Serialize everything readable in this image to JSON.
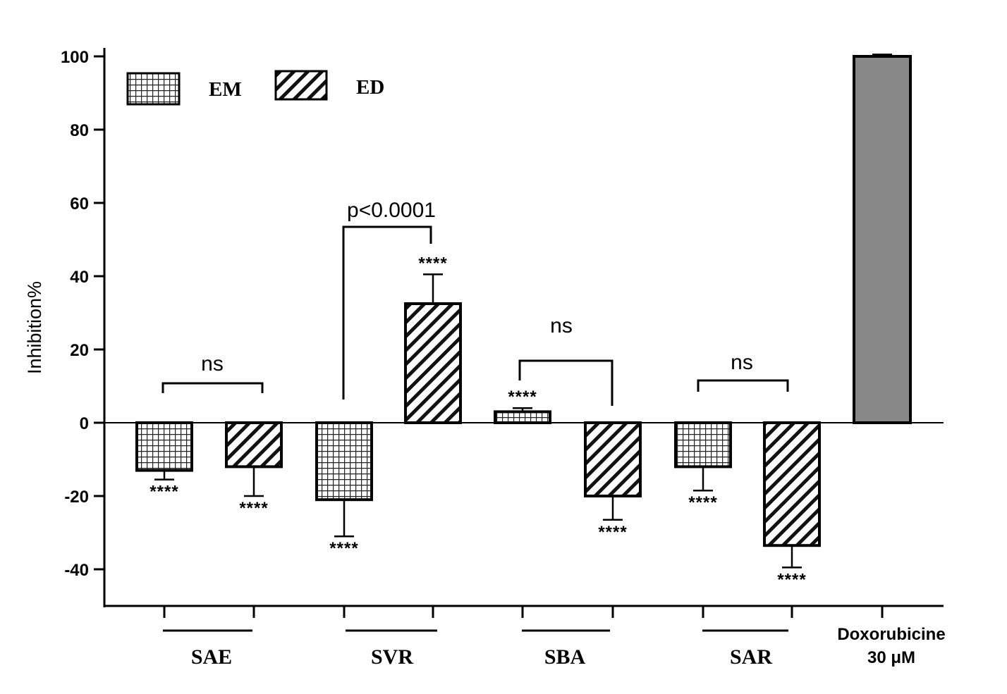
{
  "chart_data": {
    "type": "bar",
    "ylabel": "Inhibition%",
    "ylim": [
      -50,
      100
    ],
    "yticks": [
      "100",
      "80",
      "60",
      "40",
      "20",
      "0",
      "-20",
      "-40"
    ],
    "ytick_values": [
      100,
      80,
      60,
      40,
      20,
      0,
      -20,
      -40
    ],
    "legend": [
      {
        "name": "EM",
        "pattern": "grid"
      },
      {
        "name": "ED",
        "pattern": "diagonal"
      }
    ],
    "groups": [
      "SAE",
      "SVR",
      "SBA",
      "SAR"
    ],
    "series": [
      {
        "name": "EM",
        "values": [
          -13,
          -21,
          3,
          -12
        ],
        "errors": [
          2.5,
          10,
          1,
          6.5
        ]
      },
      {
        "name": "ED",
        "values": [
          -12,
          32.5,
          -20,
          -33.5
        ],
        "errors": [
          8,
          8,
          6.5,
          6
        ]
      }
    ],
    "stars": "****",
    "control": {
      "label_line1": "Doxorubicine",
      "label_line2": "30 μM",
      "value": 100,
      "error": 0.5,
      "color": "#888888"
    },
    "comparisons": [
      "ns",
      "p<0.0001",
      "ns",
      "ns"
    ]
  }
}
